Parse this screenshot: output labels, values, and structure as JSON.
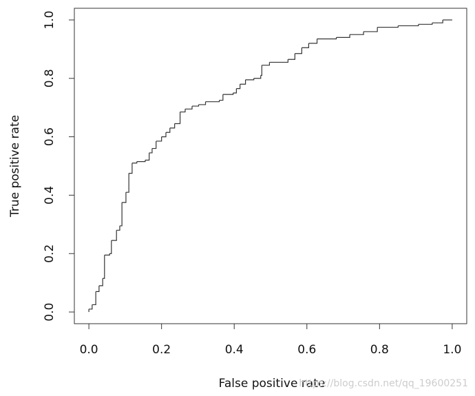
{
  "chart_data": {
    "type": "step",
    "xlabel": "False positive rate",
    "ylabel": "True positive rate",
    "watermark": "https://blog.csdn.net/qq_19600251",
    "color": "#333333",
    "x": [
      0,
      0.009,
      0.019,
      0.028,
      0.038,
      0.043,
      0.057,
      0.062,
      0.076,
      0.085,
      0.091,
      0.102,
      0.11,
      0.119,
      0.132,
      0.155,
      0.166,
      0.174,
      0.185,
      0.2,
      0.212,
      0.223,
      0.236,
      0.251,
      0.265,
      0.284,
      0.302,
      0.321,
      0.359,
      0.369,
      0.397,
      0.406,
      0.416,
      0.431,
      0.454,
      0.473,
      0.476,
      0.497,
      0.548,
      0.567,
      0.586,
      0.605,
      0.628,
      0.681,
      0.718,
      0.756,
      0.794,
      0.851,
      0.907,
      0.945,
      0.974,
      1
    ],
    "values": [
      0.01,
      0.025,
      0.07,
      0.09,
      0.115,
      0.195,
      0.2,
      0.245,
      0.28,
      0.295,
      0.375,
      0.41,
      0.475,
      0.51,
      0.515,
      0.52,
      0.545,
      0.56,
      0.585,
      0.6,
      0.615,
      0.63,
      0.645,
      0.685,
      0.695,
      0.705,
      0.71,
      0.72,
      0.725,
      0.745,
      0.75,
      0.765,
      0.78,
      0.795,
      0.8,
      0.81,
      0.845,
      0.855,
      0.865,
      0.885,
      0.905,
      0.92,
      0.935,
      0.94,
      0.95,
      0.96,
      0.975,
      0.98,
      0.985,
      0.99,
      1.0,
      1.0
    ],
    "xlim": [
      -0.04,
      1.04
    ],
    "ylim": [
      -0.04,
      1.04
    ],
    "xticks": [
      {
        "value": 0,
        "label": "0.0"
      },
      0.2,
      0.4,
      0.6,
      0.8,
      {
        "value": 1,
        "label": "1.0"
      }
    ],
    "yticks": [
      {
        "value": 0,
        "label": "0.0"
      },
      0.2,
      0.4,
      0.6,
      0.8,
      {
        "value": 1,
        "label": "1.0"
      }
    ]
  }
}
